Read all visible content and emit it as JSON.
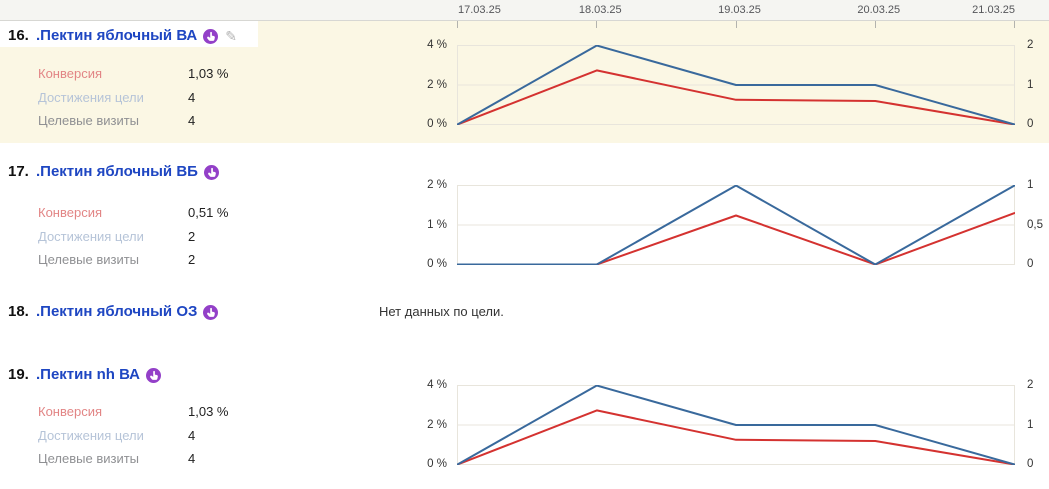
{
  "header": {
    "dates": [
      "17.03.25",
      "18.03.25",
      "19.03.25",
      "20.03.25",
      "21.03.25"
    ]
  },
  "labels": {
    "conversion": "Конверсия",
    "goal_reaches": "Достижения цели",
    "goal_visits": "Целевые визиты"
  },
  "icons": {
    "goal_type": "hand-circle-icon",
    "edit_glyph": "✎"
  },
  "colors": {
    "row_highlight": "#fbf7e4",
    "link": "#1e46c2",
    "conversion_line": "#d43230",
    "reaches_line": "#39699c",
    "goal_icon": "#9340c8",
    "grid": "#e8e5dc"
  },
  "rows": [
    {
      "num": "16.",
      "title": ".Пектин яблочный ВА",
      "conversion": "1,03 %",
      "goal_reaches": "4",
      "goal_visits": "4"
    },
    {
      "num": "17.",
      "title": ".Пектин яблочный ВБ",
      "conversion": "0,51 %",
      "goal_reaches": "2",
      "goal_visits": "2"
    },
    {
      "num": "18.",
      "title": ".Пектин яблочный ОЗ",
      "no_data": "Нет данных по цели."
    },
    {
      "num": "19.",
      "title": ".Пектин nh ВА",
      "conversion": "1,03 %",
      "goal_reaches": "4",
      "goal_visits": "4"
    }
  ],
  "chart_data": [
    {
      "type": "line",
      "x": [
        "17.03.25",
        "18.03.25",
        "19.03.25",
        "20.03.25",
        "21.03.25"
      ],
      "left_axis": {
        "labels": [
          "4 %",
          "2 %",
          "0 %"
        ],
        "max": 4,
        "unit": "%"
      },
      "right_axis": {
        "labels": [
          "2",
          "1",
          "0"
        ],
        "max": 2
      },
      "grid": true,
      "series": [
        {
          "name": "Конверсия",
          "axis": "left",
          "color": "#d43230",
          "values": [
            0,
            2.74,
            1.25,
            1.19,
            0
          ]
        },
        {
          "name": "Достижения цели",
          "axis": "right",
          "color": "#39699c",
          "values": [
            0,
            2,
            1,
            1,
            0
          ]
        }
      ]
    },
    {
      "type": "line",
      "x": [
        "17.03.25",
        "18.03.25",
        "19.03.25",
        "20.03.25",
        "21.03.25"
      ],
      "left_axis": {
        "labels": [
          "2 %",
          "1 %",
          "0 %"
        ],
        "max": 2,
        "unit": "%"
      },
      "right_axis": {
        "labels": [
          "1",
          "0,5",
          "0"
        ],
        "max": 1
      },
      "grid": true,
      "series": [
        {
          "name": "Конверсия",
          "axis": "left",
          "color": "#d43230",
          "values": [
            0,
            0,
            1.24,
            0,
            1.3
          ]
        },
        {
          "name": "Достижения цели",
          "axis": "right",
          "color": "#39699c",
          "values": [
            0,
            0,
            1,
            0,
            1
          ]
        }
      ]
    },
    {
      "type": "line",
      "x": [
        "17.03.25",
        "18.03.25",
        "19.03.25",
        "20.03.25",
        "21.03.25"
      ],
      "left_axis": {
        "labels": [
          "4 %",
          "2 %",
          "0 %"
        ],
        "max": 4,
        "unit": "%"
      },
      "right_axis": {
        "labels": [
          "2",
          "1",
          "0"
        ],
        "max": 2
      },
      "grid": true,
      "series": [
        {
          "name": "Конверсия",
          "axis": "left",
          "color": "#d43230",
          "values": [
            0,
            2.74,
            1.25,
            1.19,
            0
          ]
        },
        {
          "name": "Достижения цели",
          "axis": "right",
          "color": "#39699c",
          "values": [
            0,
            2,
            1,
            1,
            0
          ]
        }
      ]
    }
  ]
}
